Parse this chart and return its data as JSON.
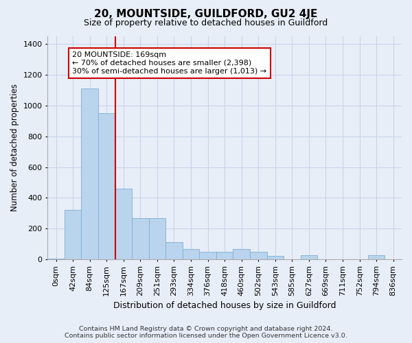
{
  "title": "20, MOUNTSIDE, GUILDFORD, GU2 4JE",
  "subtitle": "Size of property relative to detached houses in Guildford",
  "xlabel": "Distribution of detached houses by size in Guildford",
  "ylabel": "Number of detached properties",
  "footer_line1": "Contains HM Land Registry data © Crown copyright and database right 2024.",
  "footer_line2": "Contains public sector information licensed under the Open Government Licence v3.0.",
  "categories": [
    "0sqm",
    "42sqm",
    "84sqm",
    "125sqm",
    "167sqm",
    "209sqm",
    "251sqm",
    "293sqm",
    "334sqm",
    "376sqm",
    "418sqm",
    "460sqm",
    "502sqm",
    "543sqm",
    "585sqm",
    "627sqm",
    "669sqm",
    "711sqm",
    "752sqm",
    "794sqm",
    "836sqm"
  ],
  "values": [
    5,
    320,
    1110,
    950,
    460,
    270,
    270,
    115,
    70,
    50,
    50,
    70,
    50,
    25,
    0,
    30,
    0,
    0,
    0,
    30,
    0
  ],
  "bar_color": "#bad4ed",
  "bar_edge_color": "#7aafd4",
  "grid_color": "#c8d4e8",
  "background_color": "#e8eef8",
  "plot_bg_color": "#e8eef8",
  "vline_pos": 4,
  "vline_color": "#cc0000",
  "annotation_text": "20 MOUNTSIDE: 169sqm\n← 70% of detached houses are smaller (2,398)\n30% of semi-detached houses are larger (1,013) →",
  "annotation_box_color": "#ffffff",
  "annotation_box_edge_color": "#cc0000",
  "ylim": [
    0,
    1450
  ],
  "yticks": [
    0,
    200,
    400,
    600,
    800,
    1000,
    1200,
    1400
  ]
}
